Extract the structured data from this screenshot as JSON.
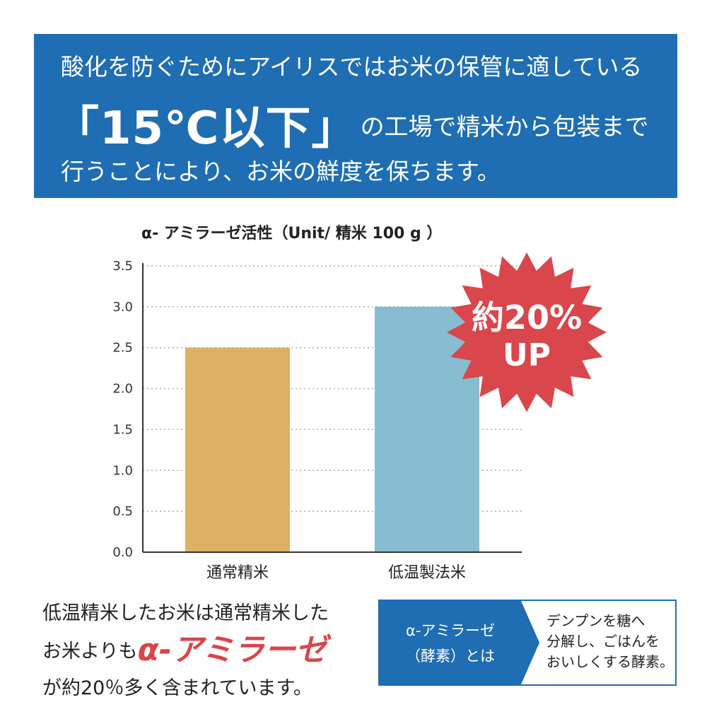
{
  "header": {
    "line1": "酸化を防ぐためにアイリスではお米の保管に適している",
    "highlight": "「15℃以下」",
    "line2_rest": "の工場で精米から包装まで",
    "line3": "行うことにより、お米の鮮度を保ちます。"
  },
  "chart_data": {
    "type": "bar",
    "title": "α- アミラーゼ活性（Unit/ 精米 100 g ）",
    "categories": [
      "通常精米",
      "低温製法米"
    ],
    "values": [
      2.5,
      3.0
    ],
    "colors": [
      "#dcb065",
      "#87bcd1"
    ],
    "ylim": [
      0,
      3.5
    ],
    "yticks": [
      "0.0",
      "0.5",
      "1.0",
      "1.5",
      "2.0",
      "2.5",
      "3.0",
      "3.5"
    ],
    "grid": true
  },
  "badge": {
    "line1": "約20%",
    "line2": "UP",
    "color": "#d9464b"
  },
  "bottom": {
    "line1": "低温精米したお米は通常精米した",
    "line2_prefix": "お米よりも",
    "line2_accent": "α-アミラーゼ",
    "line3": "が約20％多く含まれています。"
  },
  "info": {
    "left_line1": "α-アミラーゼ",
    "left_line2": "（酵素）とは",
    "right_line1": "デンプンを糖へ",
    "right_line2": "分解し、ごはんを",
    "right_line3": "おいしくする酵素。"
  }
}
